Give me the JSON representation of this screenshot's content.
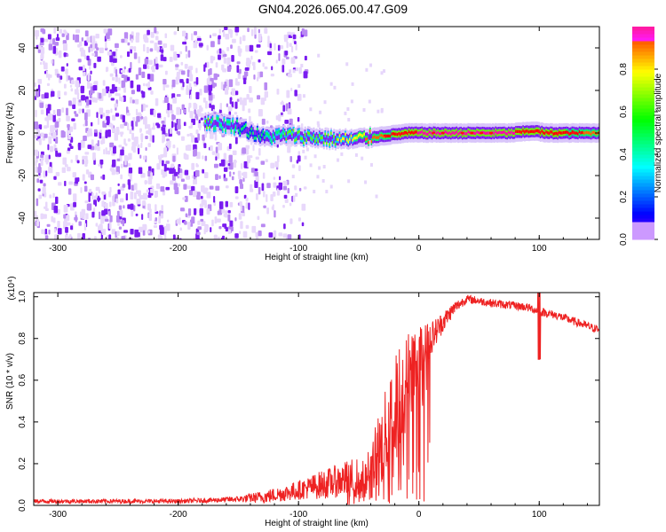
{
  "title": "GN04.2026.065.00.47.G09",
  "chart_data": [
    {
      "type": "heatmap",
      "xlabel": "Height of straight line (km)",
      "ylabel": "Frequency (Hz)",
      "xlim": [
        -320,
        150
      ],
      "ylim": [
        -50,
        50
      ],
      "xticks": [
        -300,
        -200,
        -100,
        0,
        100
      ],
      "yticks": [
        -40,
        -20,
        0,
        20,
        40
      ],
      "colorbar": {
        "label": "Normalized spectral amplitude",
        "range": [
          0.0,
          1.0
        ],
        "ticks": [
          0.0,
          0.2,
          0.4,
          0.6,
          0.8
        ],
        "colors": [
          "#ffffff",
          "#6600ff",
          "#0033ff",
          "#00ccff",
          "#00ff66",
          "#66ff00",
          "#ffff00",
          "#ff6600",
          "#ff0000",
          "#ff00aa"
        ]
      },
      "ridge": {
        "description": "dominant frequency line",
        "x": [
          -175,
          -150,
          -130,
          -110,
          -90,
          -70,
          -55,
          -40,
          -25,
          -10,
          0,
          25,
          50,
          75,
          95,
          105,
          125,
          150
        ],
        "freq": [
          5,
          3,
          -2,
          -1,
          -2,
          -3,
          -3,
          -2,
          -1,
          0,
          0,
          0,
          0,
          0,
          1,
          0,
          0,
          0
        ],
        "amplitude": [
          0.45,
          0.4,
          0.4,
          0.45,
          0.5,
          0.55,
          0.6,
          0.7,
          0.8,
          0.85,
          0.9,
          0.95,
          0.95,
          0.9,
          0.85,
          0.85,
          0.8,
          0.75
        ]
      },
      "noise_region_x": [
        -320,
        -110
      ]
    },
    {
      "type": "line",
      "xlabel": "Height of straight line (km)",
      "ylabel": "SNR (10 * v/v)",
      "yscale_note": "(x10⁴)",
      "xlim": [
        -320,
        150
      ],
      "ylim": [
        0,
        1.02
      ],
      "xticks": [
        -300,
        -200,
        -100,
        0,
        100
      ],
      "yticks": [
        0.0,
        0.2,
        0.4,
        0.6,
        0.8,
        1.0
      ],
      "series": [
        {
          "name": "SNR",
          "color": "#ee2222",
          "x": [
            -320,
            -250,
            -200,
            -170,
            -150,
            -130,
            -110,
            -95,
            -80,
            -65,
            -55,
            -45,
            -38,
            -30,
            -22,
            -15,
            -8,
            0,
            10,
            20,
            30,
            40,
            50,
            60,
            75,
            90,
            100,
            115,
            130,
            150
          ],
          "y": [
            0.02,
            0.02,
            0.02,
            0.025,
            0.03,
            0.04,
            0.06,
            0.08,
            0.1,
            0.12,
            0.13,
            0.12,
            0.2,
            0.3,
            0.45,
            0.55,
            0.65,
            0.72,
            0.8,
            0.88,
            0.95,
            0.99,
            0.98,
            0.97,
            0.96,
            0.95,
            0.93,
            0.91,
            0.88,
            0.84
          ],
          "spread": [
            0.01,
            0.01,
            0.01,
            0.012,
            0.015,
            0.03,
            0.04,
            0.05,
            0.07,
            0.08,
            0.1,
            0.1,
            0.15,
            0.2,
            0.25,
            0.25,
            0.2,
            0.15,
            0.08,
            0.05,
            0.03,
            0.02,
            0.02,
            0.02,
            0.02,
            0.02,
            0.02,
            0.02,
            0.02,
            0.02
          ]
        }
      ]
    }
  ]
}
